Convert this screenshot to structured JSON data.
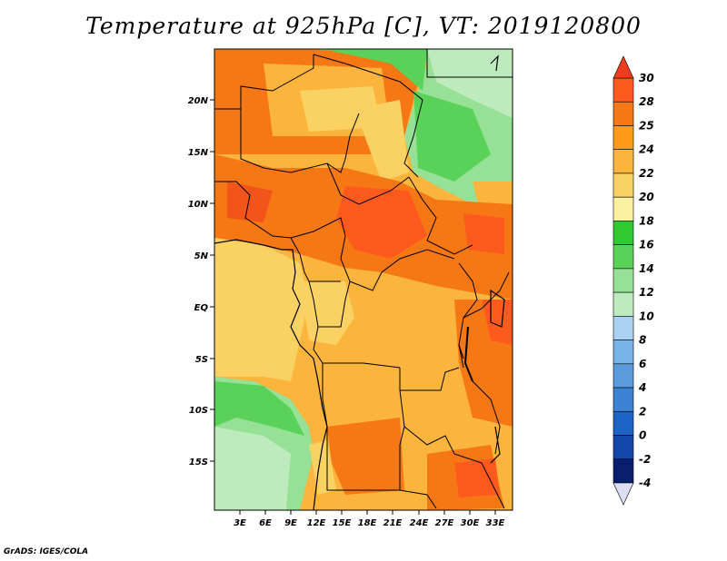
{
  "title": "Temperature at 925hPa [C], VT: 2019120800",
  "credit": "GrADS: IGES/COLA",
  "map": {
    "lon_ticks": [
      "3E",
      "6E",
      "9E",
      "12E",
      "15E",
      "18E",
      "21E",
      "24E",
      "27E",
      "30E",
      "33E"
    ],
    "lat_ticks": [
      "20N",
      "15N",
      "10N",
      "5N",
      "EQ",
      "5S",
      "10S",
      "15S"
    ]
  },
  "colorbar": {
    "labels": [
      "30",
      "28",
      "25",
      "24",
      "22",
      "20",
      "18",
      "16",
      "14",
      "12",
      "10",
      "8",
      "6",
      "4",
      "2",
      "0",
      "-2",
      "-4"
    ],
    "colors": [
      "#f03c1e",
      "#ff5a1e",
      "#f57814",
      "#ff9b19",
      "#fbb43c",
      "#fad264",
      "#faf0a0",
      "#32c832",
      "#5ad25a",
      "#96e196",
      "#beebbe",
      "#aad2f0",
      "#78b4e6",
      "#5a9bdc",
      "#3c82d2",
      "#1e64c8",
      "#1446aa",
      "#0a1e6e",
      "#dcdcf5"
    ]
  }
}
